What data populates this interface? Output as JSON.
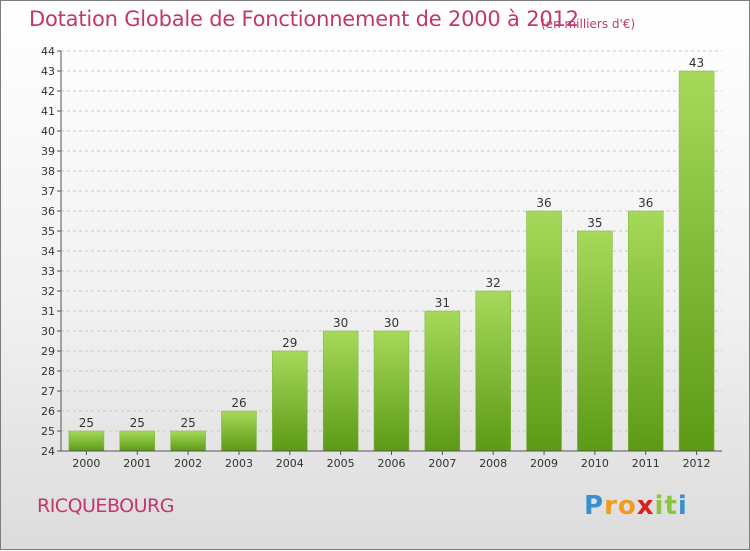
{
  "title": "Dotation Globale de Fonctionnement de 2000 à 2012",
  "subtitle": "(en milliers d'€)",
  "commune": "RICQUEBOURG",
  "logo": {
    "letters": [
      "P",
      "r",
      "o",
      "x",
      "i",
      "t",
      "i"
    ],
    "colors": [
      "#3a8fcf",
      "#f29a1d",
      "#f29a1d",
      "#d9211d",
      "#8bc53f",
      "#8bc53f",
      "#3a8fcf"
    ]
  },
  "colors": {
    "bar_top": "#a6d95a",
    "bar_bottom": "#5c9a16",
    "grid": "#c9c9c9",
    "axis": "#555555",
    "title": "#c4366d"
  },
  "chart_data": {
    "type": "bar",
    "categories": [
      "2000",
      "2001",
      "2002",
      "2003",
      "2004",
      "2005",
      "2006",
      "2007",
      "2008",
      "2009",
      "2010",
      "2011",
      "2012"
    ],
    "values": [
      25,
      25,
      25,
      26,
      29,
      30,
      30,
      31,
      32,
      36,
      35,
      36,
      43
    ],
    "title": "Dotation Globale de Fonctionnement de 2000 à 2012",
    "subtitle": "(en milliers d'€)",
    "xlabel": "",
    "ylabel": "",
    "ylim": [
      24,
      44
    ],
    "yticks": [
      24,
      25,
      26,
      27,
      28,
      29,
      30,
      31,
      32,
      33,
      34,
      35,
      36,
      37,
      38,
      39,
      40,
      41,
      42,
      43,
      44
    ],
    "grid": true,
    "legend": "none"
  }
}
